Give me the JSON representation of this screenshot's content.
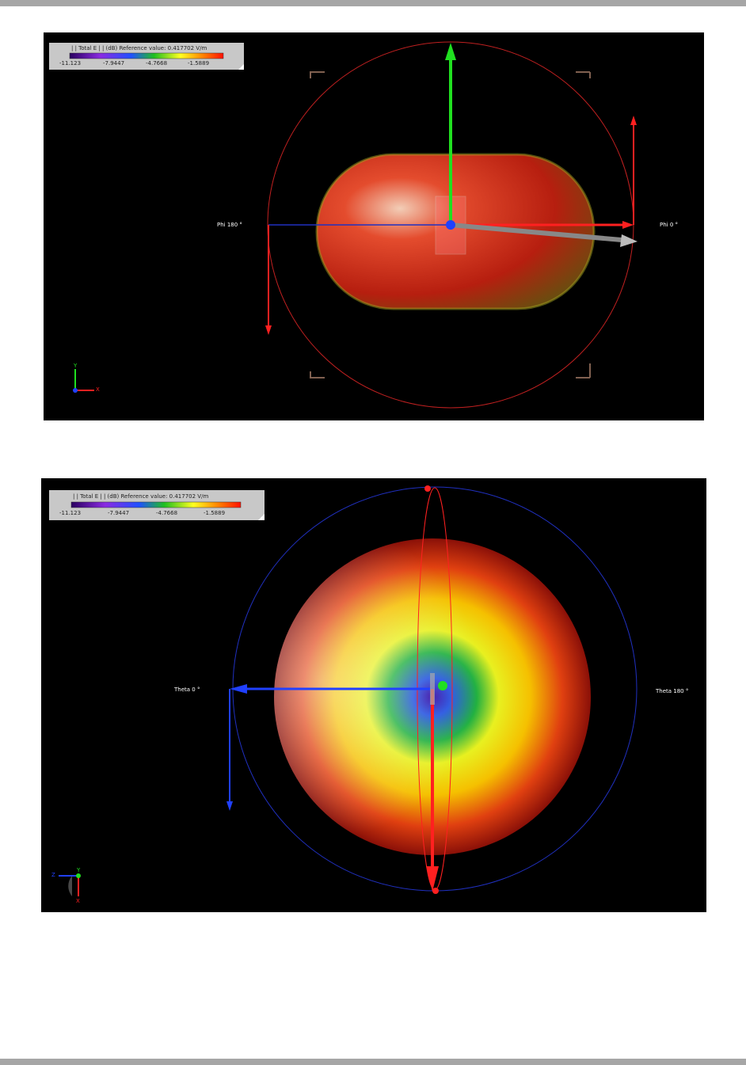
{
  "figures": [
    {
      "legend": {
        "title": "| | Total E | | (dB) Reference value: 0.417702 V/m",
        "ticks": [
          "-11.123",
          "-7.9447",
          "-4.7668",
          "-1.5889"
        ]
      },
      "labels": {
        "left": "Phi 180 °",
        "right": "Phi 0 °"
      },
      "axes": [
        "Y",
        "X"
      ]
    },
    {
      "legend": {
        "title": "| | Total E | | (dB) Reference value: 0.417702 V/m",
        "ticks": [
          "-11.123",
          "-7.9447",
          "-4.7668",
          "-1.5889"
        ]
      },
      "labels": {
        "left": "Theta 0 °",
        "right": "Theta 180 °"
      },
      "axes": [
        "Z",
        "Y",
        "X"
      ]
    }
  ]
}
